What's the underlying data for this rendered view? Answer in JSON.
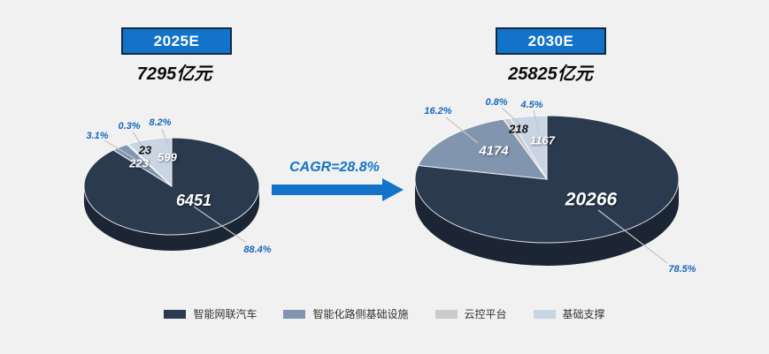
{
  "background": "#F1F1F1",
  "colors": {
    "accent_blue": "#1273C8",
    "badge_border": "#102A43",
    "percent_label": "#1568BE",
    "pie_side": "#1B2533",
    "leader_line": "#C5C5C5",
    "slices": [
      "#2B3A4F",
      "#8295AF",
      "#CBCBCE",
      "#C9D5E3"
    ]
  },
  "cagr": {
    "label": "CAGR=28.8%"
  },
  "legend": {
    "items": [
      {
        "label": "智能网联汽车"
      },
      {
        "label": "智能化路侧基础设施"
      },
      {
        "label": "云控平台"
      },
      {
        "label": "基础支撑"
      }
    ]
  },
  "chart_data": [
    {
      "type": "pie",
      "style": "3d",
      "title": "2025E",
      "subtitle": "7295亿元",
      "categories": [
        "智能网联汽车",
        "智能化路侧基础设施",
        "云控平台",
        "基础支撑"
      ],
      "values": [
        6451,
        223,
        23,
        599
      ],
      "percent_labels": [
        "88.4%",
        "3.1%",
        "0.3%",
        "8.2%"
      ],
      "start_angle_deg": 0,
      "direction": "clockwise",
      "legend_position": "bottom"
    },
    {
      "type": "pie",
      "style": "3d",
      "title": "2030E",
      "subtitle": "25825亿元",
      "categories": [
        "智能网联汽车",
        "智能化路侧基础设施",
        "云控平台",
        "基础支撑"
      ],
      "values": [
        20266,
        4174,
        218,
        1167
      ],
      "percent_labels": [
        "78.5%",
        "16.2%",
        "0.8%",
        "4.5%"
      ],
      "start_angle_deg": 0,
      "direction": "clockwise",
      "legend_position": "bottom"
    }
  ]
}
